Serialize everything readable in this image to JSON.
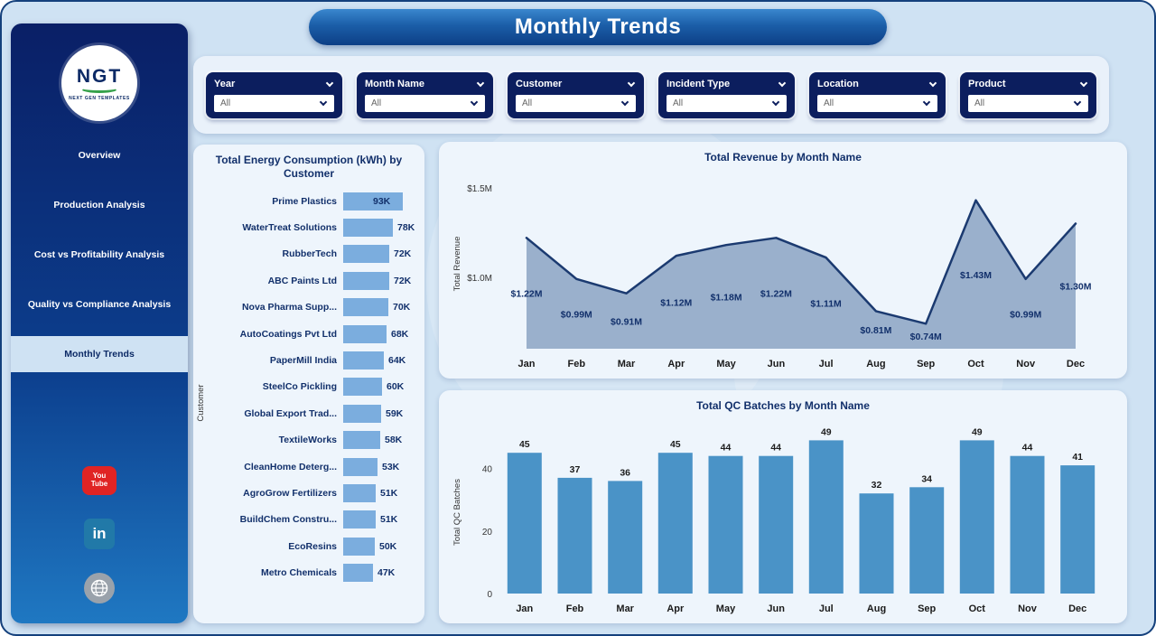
{
  "title": "Monthly Trends",
  "sidebar": {
    "logo": {
      "text": "NGT",
      "subtext": "NEXT GEN TEMPLATES"
    },
    "items": [
      {
        "label": "Overview",
        "active": false
      },
      {
        "label": "Production Analysis",
        "active": false
      },
      {
        "label": "Cost vs Profitability Analysis",
        "active": false
      },
      {
        "label": "Quality vs Compliance Analysis",
        "active": false
      },
      {
        "label": "Monthly Trends",
        "active": true
      }
    ],
    "social": [
      {
        "name": "youtube",
        "text_top": "You",
        "text_bottom": "Tube"
      },
      {
        "name": "linkedin",
        "text": "in"
      },
      {
        "name": "website"
      }
    ]
  },
  "filters": [
    {
      "label": "Year",
      "value": "All"
    },
    {
      "label": "Month Name",
      "value": "All"
    },
    {
      "label": "Customer",
      "value": "All"
    },
    {
      "label": "Incident Type",
      "value": "All"
    },
    {
      "label": "Location",
      "value": "All"
    },
    {
      "label": "Product",
      "value": "All"
    }
  ],
  "colors": {
    "slicer_navy": "#0c1e5e",
    "title_navy": "#12306b",
    "energy_bar_blue": "#7badde",
    "qc_bar_blue": "#4a93c7",
    "area_fill": "#93a9c8",
    "area_line": "#1b3a70",
    "youtube_red": "#e02424",
    "linkedin_blue": "#2179a8"
  },
  "chart_data": [
    {
      "type": "bar",
      "orientation": "horizontal",
      "title": "Total Energy Consumption (kWh) by Customer",
      "ylabel": "Customer",
      "categories": [
        "Prime Plastics",
        "WaterTreat Solutions",
        "RubberTech",
        "ABC Paints Ltd",
        "Nova Pharma Supp...",
        "AutoCoatings Pvt Ltd",
        "PaperMill India",
        "SteelCo Pickling",
        "Global Export Trad...",
        "TextileWorks",
        "CleanHome Deterg...",
        "AgroGrow Fertilizers",
        "BuildChem Constru...",
        "EcoResins",
        "Metro Chemicals"
      ],
      "values": [
        93,
        78,
        72,
        72,
        70,
        68,
        64,
        60,
        59,
        58,
        53,
        51,
        51,
        50,
        47
      ],
      "values_display": [
        "93K",
        "78K",
        "72K",
        "72K",
        "70K",
        "68K",
        "64K",
        "60K",
        "59K",
        "58K",
        "53K",
        "51K",
        "51K",
        "50K",
        "47K"
      ],
      "unit": "kWh (thousands)"
    },
    {
      "type": "area",
      "title": "Total Revenue by Month Name",
      "ylabel": "Total Revenue",
      "categories": [
        "Jan",
        "Feb",
        "Mar",
        "Apr",
        "May",
        "Jun",
        "Jul",
        "Aug",
        "Sep",
        "Oct",
        "Nov",
        "Dec"
      ],
      "values": [
        1.22,
        0.99,
        0.91,
        1.12,
        1.18,
        1.22,
        1.11,
        0.81,
        0.74,
        1.43,
        0.99,
        1.3
      ],
      "labels": [
        "$1.22M",
        "$0.99M",
        "$0.91M",
        "$1.12M",
        "$1.18M",
        "$1.22M",
        "$1.11M",
        "$0.81M",
        "$0.74M",
        "$1.43M",
        "$0.99M",
        "$1.30M"
      ],
      "yticks": [
        {
          "v": 1.0,
          "label": "$1.0M"
        },
        {
          "v": 1.5,
          "label": "$1.5M"
        }
      ],
      "ylim": [
        0.6,
        1.55
      ],
      "grid": false,
      "unit": "USD millions"
    },
    {
      "type": "bar",
      "orientation": "vertical",
      "title": "Total QC Batches by Month Name",
      "ylabel": "Total QC Batches",
      "categories": [
        "Jan",
        "Feb",
        "Mar",
        "Apr",
        "May",
        "Jun",
        "Jul",
        "Aug",
        "Sep",
        "Oct",
        "Nov",
        "Dec"
      ],
      "values": [
        45,
        37,
        36,
        45,
        44,
        44,
        49,
        32,
        34,
        49,
        44,
        41
      ],
      "yticks": [
        {
          "v": 0,
          "label": "0"
        },
        {
          "v": 20,
          "label": "20"
        },
        {
          "v": 40,
          "label": "40"
        }
      ],
      "ylim": [
        0,
        52
      ],
      "grid": false
    }
  ]
}
